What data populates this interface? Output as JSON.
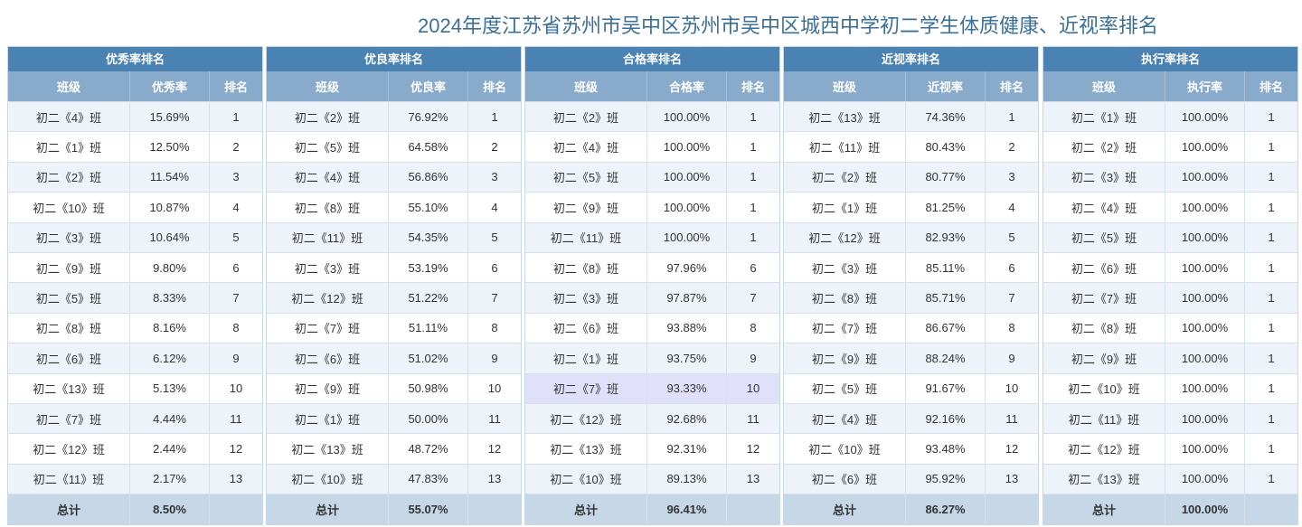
{
  "page": {
    "title": "2024年度江苏省苏州市吴中区苏州市吴中区城西中学初二学生体质健康、近视率排名"
  },
  "colors": {
    "title": "#3a6f9a",
    "panel_header": "#4a82b3",
    "column_header": "#89abcb",
    "row_alt": "#edf3f9",
    "row_highlight": "#e0e0fa",
    "total_row": "#c6d8e8"
  },
  "panels": [
    {
      "title": "优秀率排名",
      "columns": [
        "班级",
        "优秀率",
        "排名"
      ],
      "rows": [
        [
          "初二《4》班",
          "15.69%",
          "1"
        ],
        [
          "初二《1》班",
          "12.50%",
          "2"
        ],
        [
          "初二《2》班",
          "11.54%",
          "3"
        ],
        [
          "初二《10》班",
          "10.87%",
          "4"
        ],
        [
          "初二《3》班",
          "10.64%",
          "5"
        ],
        [
          "初二《9》班",
          "9.80%",
          "6"
        ],
        [
          "初二《5》班",
          "8.33%",
          "7"
        ],
        [
          "初二《8》班",
          "8.16%",
          "8"
        ],
        [
          "初二《6》班",
          "6.12%",
          "9"
        ],
        [
          "初二《13》班",
          "5.13%",
          "10"
        ],
        [
          "初二《7》班",
          "4.44%",
          "11"
        ],
        [
          "初二《12》班",
          "2.44%",
          "12"
        ],
        [
          "初二《11》班",
          "2.17%",
          "13"
        ]
      ],
      "total": [
        "总计",
        "8.50%",
        ""
      ]
    },
    {
      "title": "优良率排名",
      "columns": [
        "班级",
        "优良率",
        "排名"
      ],
      "rows": [
        [
          "初二《2》班",
          "76.92%",
          "1"
        ],
        [
          "初二《5》班",
          "64.58%",
          "2"
        ],
        [
          "初二《4》班",
          "56.86%",
          "3"
        ],
        [
          "初二《8》班",
          "55.10%",
          "4"
        ],
        [
          "初二《11》班",
          "54.35%",
          "5"
        ],
        [
          "初二《3》班",
          "53.19%",
          "6"
        ],
        [
          "初二《12》班",
          "51.22%",
          "7"
        ],
        [
          "初二《7》班",
          "51.11%",
          "8"
        ],
        [
          "初二《6》班",
          "51.02%",
          "9"
        ],
        [
          "初二《9》班",
          "50.98%",
          "10"
        ],
        [
          "初二《1》班",
          "50.00%",
          "11"
        ],
        [
          "初二《13》班",
          "48.72%",
          "12"
        ],
        [
          "初二《10》班",
          "47.83%",
          "13"
        ]
      ],
      "total": [
        "总计",
        "55.07%",
        ""
      ]
    },
    {
      "title": "合格率排名",
      "columns": [
        "班级",
        "合格率",
        "排名"
      ],
      "rows": [
        [
          "初二《2》班",
          "100.00%",
          "1"
        ],
        [
          "初二《4》班",
          "100.00%",
          "1"
        ],
        [
          "初二《5》班",
          "100.00%",
          "1"
        ],
        [
          "初二《9》班",
          "100.00%",
          "1"
        ],
        [
          "初二《11》班",
          "100.00%",
          "1"
        ],
        [
          "初二《8》班",
          "97.96%",
          "6"
        ],
        [
          "初二《3》班",
          "97.87%",
          "7"
        ],
        [
          "初二《6》班",
          "93.88%",
          "8"
        ],
        [
          "初二《1》班",
          "93.75%",
          "9"
        ],
        [
          "初二《7》班",
          "93.33%",
          "10"
        ],
        [
          "初二《12》班",
          "92.68%",
          "11"
        ],
        [
          "初二《13》班",
          "92.31%",
          "12"
        ],
        [
          "初二《10》班",
          "89.13%",
          "13"
        ]
      ],
      "total": [
        "总计",
        "96.41%",
        ""
      ]
    },
    {
      "title": "近视率排名",
      "columns": [
        "班级",
        "近视率",
        "排名"
      ],
      "rows": [
        [
          "初二《13》班",
          "74.36%",
          "1"
        ],
        [
          "初二《11》班",
          "80.43%",
          "2"
        ],
        [
          "初二《2》班",
          "80.77%",
          "3"
        ],
        [
          "初二《1》班",
          "81.25%",
          "4"
        ],
        [
          "初二《12》班",
          "82.93%",
          "5"
        ],
        [
          "初二《3》班",
          "85.11%",
          "6"
        ],
        [
          "初二《8》班",
          "85.71%",
          "7"
        ],
        [
          "初二《7》班",
          "86.67%",
          "8"
        ],
        [
          "初二《9》班",
          "88.24%",
          "9"
        ],
        [
          "初二《5》班",
          "91.67%",
          "10"
        ],
        [
          "初二《4》班",
          "92.16%",
          "11"
        ],
        [
          "初二《10》班",
          "93.48%",
          "12"
        ],
        [
          "初二《6》班",
          "95.92%",
          "13"
        ]
      ],
      "total": [
        "总计",
        "86.27%",
        ""
      ]
    },
    {
      "title": "执行率排名",
      "columns": [
        "班级",
        "执行率",
        "排名"
      ],
      "rows": [
        [
          "初二《1》班",
          "100.00%",
          "1"
        ],
        [
          "初二《2》班",
          "100.00%",
          "1"
        ],
        [
          "初二《3》班",
          "100.00%",
          "1"
        ],
        [
          "初二《4》班",
          "100.00%",
          "1"
        ],
        [
          "初二《5》班",
          "100.00%",
          "1"
        ],
        [
          "初二《6》班",
          "100.00%",
          "1"
        ],
        [
          "初二《7》班",
          "100.00%",
          "1"
        ],
        [
          "初二《8》班",
          "100.00%",
          "1"
        ],
        [
          "初二《9》班",
          "100.00%",
          "1"
        ],
        [
          "初二《10》班",
          "100.00%",
          "1"
        ],
        [
          "初二《11》班",
          "100.00%",
          "1"
        ],
        [
          "初二《12》班",
          "100.00%",
          "1"
        ],
        [
          "初二《13》班",
          "100.00%",
          "1"
        ]
      ],
      "total": [
        "总计",
        "100.00%",
        ""
      ]
    }
  ]
}
